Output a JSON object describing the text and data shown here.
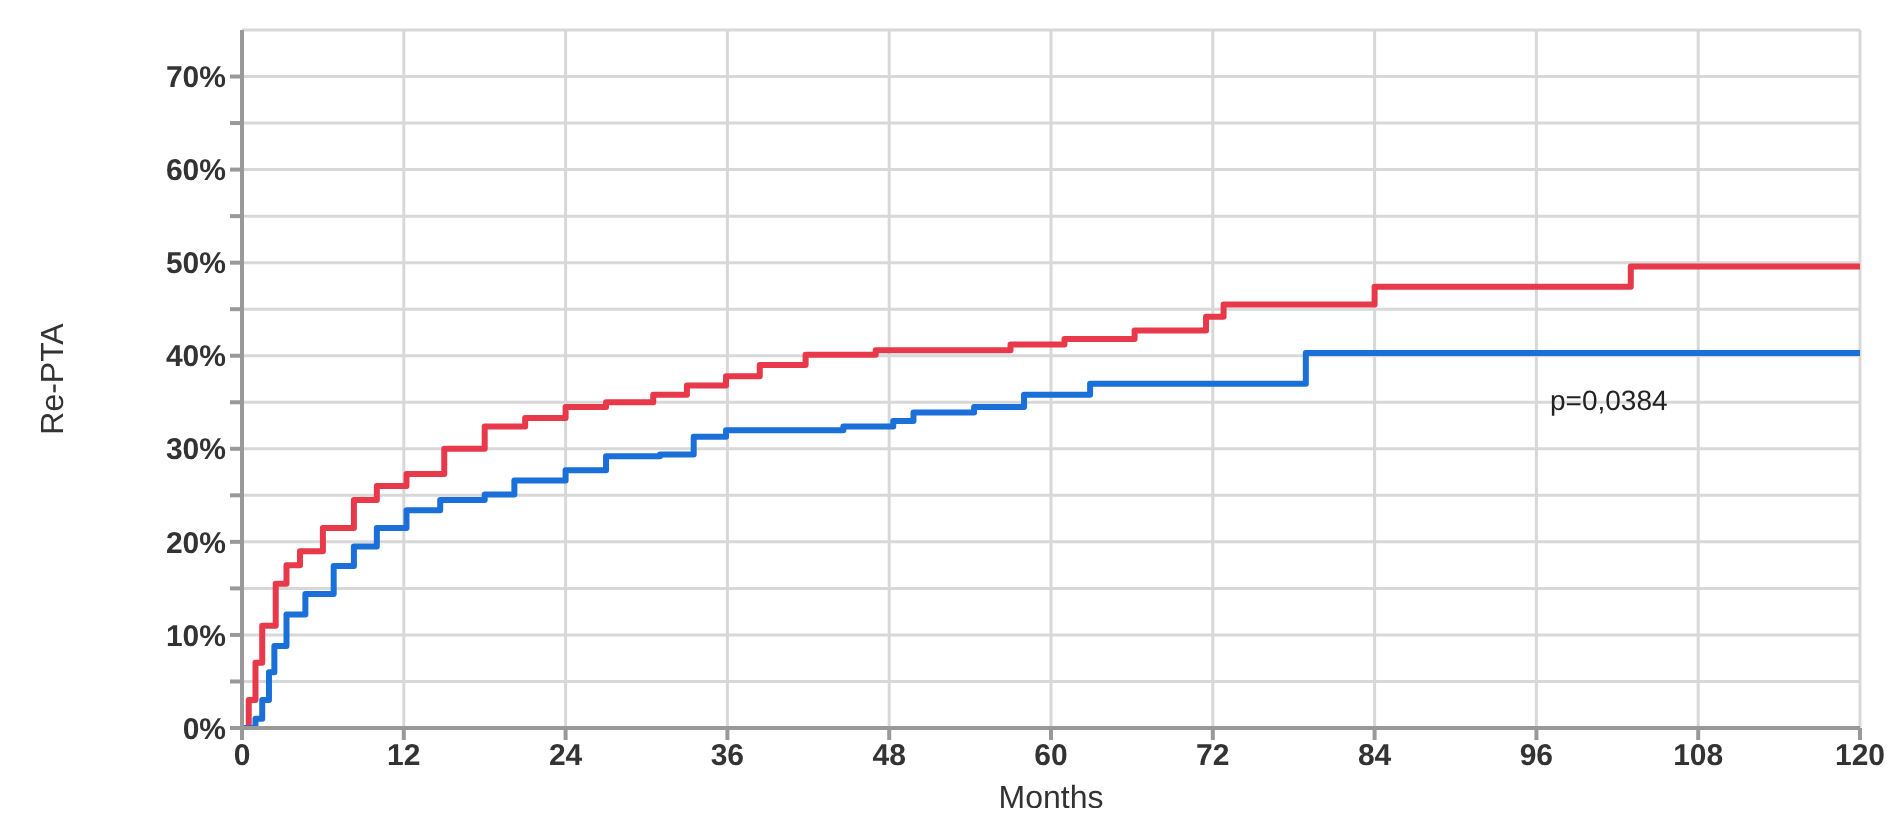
{
  "chart_data": {
    "type": "step",
    "xlabel": "Months",
    "ylabel": "Re-PTA",
    "xlim": [
      0,
      120
    ],
    "xticks": [
      0,
      12,
      24,
      36,
      48,
      60,
      72,
      84,
      96,
      108,
      120
    ],
    "ylim": [
      0,
      75
    ],
    "yticks": [
      {
        "value": 0,
        "label": "0%"
      },
      {
        "value": 5,
        "label": null
      },
      {
        "value": 10,
        "label": "10%"
      },
      {
        "value": 15,
        "label": null
      },
      {
        "value": 20,
        "label": "20%"
      },
      {
        "value": 25,
        "label": null
      },
      {
        "value": 30,
        "label": "30%"
      },
      {
        "value": 35,
        "label": null
      },
      {
        "value": 40,
        "label": "40%"
      },
      {
        "value": 45,
        "label": null
      },
      {
        "value": 50,
        "label": "50%"
      },
      {
        "value": 55,
        "label": null
      },
      {
        "value": 60,
        "label": "60%"
      },
      {
        "value": 65,
        "label": null
      },
      {
        "value": 70,
        "label": "70%"
      }
    ],
    "grid": true,
    "marker": "none",
    "line_style": "solid",
    "annotations": [
      "p=0,0384"
    ],
    "series": [
      {
        "color": "#e8394a",
        "x": [
          0,
          0.5,
          1,
          1.5,
          2.5,
          3.3,
          4.3,
          6,
          8.3,
          10,
          12.2,
          15,
          18,
          21,
          24,
          27,
          30.5,
          33,
          35.9,
          38.4,
          41.8,
          47,
          57,
          61,
          66.2,
          71.5,
          72.8,
          84,
          103,
          120
        ],
        "values": [
          0,
          3,
          7,
          11,
          15.5,
          17.5,
          19,
          21.5,
          24.5,
          26,
          27.3,
          30,
          32.4,
          33.3,
          34.5,
          35,
          35.8,
          36.8,
          37.8,
          39,
          40.1,
          40.6,
          41.2,
          41.8,
          42.7,
          44.2,
          45.5,
          47.4,
          49.6,
          49.6
        ]
      },
      {
        "color": "#1a6fd8",
        "x": [
          0,
          1,
          1.5,
          2,
          2.4,
          3.3,
          4.7,
          6.8,
          8.3,
          10,
          12.2,
          14.7,
          18,
          20.2,
          24,
          27,
          31,
          33.5,
          35.9,
          44.6,
          48.3,
          49.8,
          54.3,
          58,
          62.9,
          78.9,
          120
        ],
        "values": [
          0,
          1,
          3,
          6,
          8.8,
          12.2,
          14.4,
          17.4,
          19.5,
          21.5,
          23.4,
          24.5,
          25.1,
          26.6,
          27.7,
          29.2,
          29.4,
          31.3,
          32,
          32.4,
          33,
          33.9,
          34.5,
          35.8,
          37,
          40.3,
          40.3
        ]
      }
    ]
  }
}
